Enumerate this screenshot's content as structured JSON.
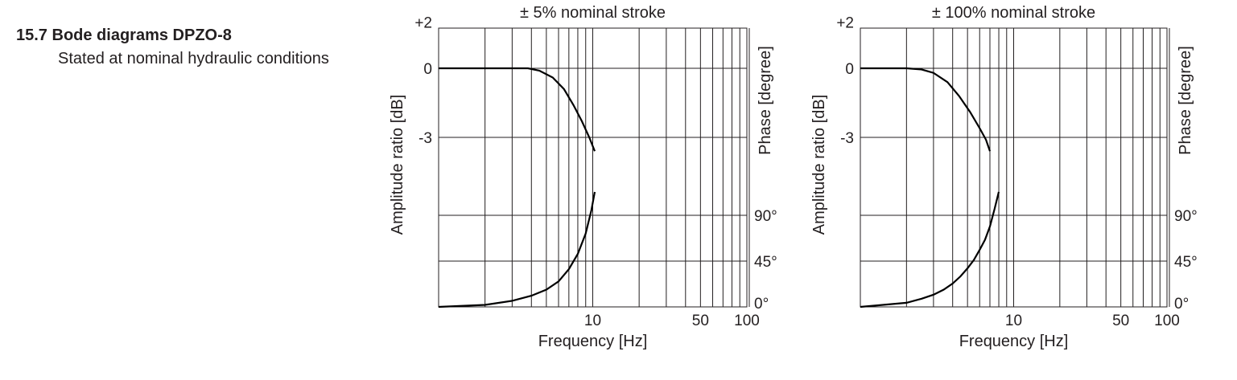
{
  "heading": {
    "number": "15.7",
    "title": "Bode diagrams DPZO-8"
  },
  "subheading": "Stated at nominal hydraulic conditions",
  "chart_data": [
    {
      "type": "line",
      "title": "± 5% nominal stroke",
      "xlabel": "Frequency [Hz]",
      "ylabel_left": "Amplitude ratio  [dB]",
      "ylabel_right": "Phase [degree]",
      "x_scale": "log",
      "xlim": [
        1,
        100
      ],
      "x_tick_labels": [
        "10",
        "50",
        "100"
      ],
      "amplitude_tick_labels": [
        "+2",
        "0",
        "-3"
      ],
      "phase_tick_labels": [
        "90°",
        "45°",
        "0°"
      ],
      "grid": true,
      "amplitude": {
        "x": [
          1,
          2,
          3,
          3.8,
          4.5,
          5.5,
          6.5,
          7.5,
          8.5,
          9.5,
          10.3
        ],
        "y": [
          0,
          0,
          0,
          0,
          -0.1,
          -0.4,
          -0.9,
          -1.6,
          -2.3,
          -3.0,
          -3.6
        ]
      },
      "phase": {
        "x": [
          1,
          2,
          3,
          4,
          5,
          6,
          7,
          8,
          9,
          9.8,
          10.3
        ],
        "y": [
          0,
          2,
          6,
          11,
          17,
          25,
          37,
          52,
          72,
          95,
          113
        ]
      }
    },
    {
      "type": "line",
      "title": "± 100% nominal stroke",
      "xlabel": "Frequency [Hz]",
      "ylabel_left": "Amplitude ratio  [dB]",
      "ylabel_right": "Phase [degree]",
      "x_scale": "log",
      "xlim": [
        1,
        100
      ],
      "x_tick_labels": [
        "10",
        "50",
        "100"
      ],
      "amplitude_tick_labels": [
        "+2",
        "0",
        "-3"
      ],
      "phase_tick_labels": [
        "90°",
        "45°",
        "0°"
      ],
      "grid": true,
      "amplitude": {
        "x": [
          1,
          1.5,
          2,
          2.5,
          3,
          3.7,
          4.4,
          5.2,
          6,
          6.6,
          7
        ],
        "y": [
          0,
          0,
          0,
          -0.05,
          -0.2,
          -0.6,
          -1.2,
          -1.9,
          -2.6,
          -3.1,
          -3.6
        ]
      },
      "phase": {
        "x": [
          1,
          2,
          2.5,
          3,
          3.5,
          4,
          4.5,
          5,
          5.5,
          6,
          6.5,
          7,
          7.5,
          8
        ],
        "y": [
          0,
          4,
          8,
          12,
          17,
          23,
          30,
          38,
          46,
          56,
          66,
          79,
          96,
          113
        ]
      }
    }
  ]
}
